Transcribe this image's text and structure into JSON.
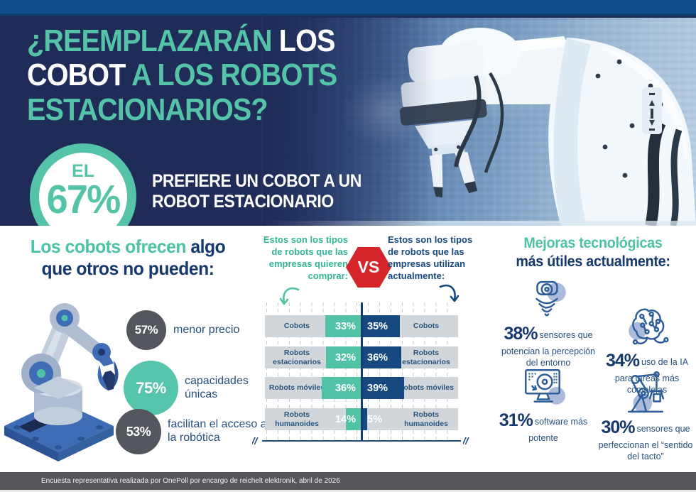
{
  "colors": {
    "teal": "#55C3A7",
    "navy": "#1F2C58",
    "strip_blue": "#0E4F8C",
    "chart_teal": "#52C2A6",
    "chart_navy": "#16497F",
    "vs_red": "#D6242B",
    "bubble_gray": "#53565C",
    "footer_gray": "#54565C"
  },
  "header": {
    "title": {
      "l1_teal": "¿REEMPLAZARÁN",
      "l1_white": "LOS",
      "l2_white": "COBOT",
      "l2_teal": "A LOS ROBOTS",
      "l3_teal": "ESTACIONARIOS?"
    },
    "stat": {
      "prefix": "EL",
      "value": "67%",
      "caption_line1": "PREFIERE UN COBOT A UN",
      "caption_line2": "ROBOT ESTACIONARIO"
    }
  },
  "left_section": {
    "title_teal": "Los cobots ofrecen",
    "title_navy": "algo",
    "title_line2": "que otros no pueden:",
    "stats": [
      {
        "value": "57%",
        "label": "menor precio",
        "color": "gray"
      },
      {
        "value": "75%",
        "label": "capacidades únicas",
        "color": "teal"
      },
      {
        "value": "53%",
        "label": "facilitan el acceso a la robótica",
        "color": "gray"
      }
    ]
  },
  "versus": {
    "left_caption": "Estos son los tipos de robots que las empresas quieren comprar:",
    "badge": "VS",
    "right_caption": "Estos son los tipos de robots que las empresas utilizan actualmente:"
  },
  "chart_data": {
    "type": "bar",
    "orientation": "horizontal-diverging",
    "categories": [
      "Cobots",
      "Robots estacionarios",
      "Robots móviles",
      "Robots humanoides"
    ],
    "series": [
      {
        "name": "Robots que las empresas quieren comprar",
        "color": "#52C2A6",
        "values": [
          33,
          32,
          36,
          14
        ]
      },
      {
        "name": "Robots que las empresas utilizan actualmente",
        "color": "#16497F",
        "values": [
          35,
          36,
          39,
          5
        ]
      }
    ],
    "unit": "%",
    "grid": "dashed-vertical",
    "axis_break_marks": true
  },
  "right_section": {
    "title_teal": "Mejoras tecnológicas",
    "title_navy": "más útiles actualmente:",
    "items": [
      {
        "value": "38%",
        "label": "sensores que potencian la percepción del entorno",
        "icon": "sensor-waves-icon"
      },
      {
        "value": "34%",
        "label": "uso de la IA para tareas más complejas",
        "icon": "ai-brain-icon"
      },
      {
        "value": "31%",
        "label": "software más potente",
        "icon": "software-monitor-icon"
      },
      {
        "value": "30%",
        "label": "sensores que perfeccionan el “sentido del tacto”",
        "icon": "tactile-gripper-icon"
      }
    ]
  },
  "footer": {
    "text": "Encuesta representativa realizada por OnePoll por encargo de reichelt elektronik, abril de 2026"
  }
}
